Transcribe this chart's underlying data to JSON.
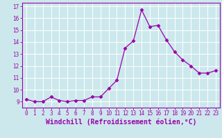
{
  "x": [
    0,
    1,
    2,
    3,
    4,
    5,
    6,
    7,
    8,
    9,
    10,
    11,
    12,
    13,
    14,
    15,
    16,
    17,
    18,
    19,
    20,
    21,
    22,
    23
  ],
  "y": [
    9.2,
    9.0,
    9.0,
    9.4,
    9.1,
    9.0,
    9.1,
    9.1,
    9.4,
    9.4,
    10.1,
    10.8,
    13.5,
    14.1,
    16.7,
    15.3,
    15.4,
    14.2,
    13.2,
    12.5,
    12.0,
    11.4,
    11.4,
    11.6
  ],
  "line_color": "#9900aa",
  "marker": "D",
  "marker_size": 2.5,
  "background_color": "#cce8ec",
  "grid_color": "#ffffff",
  "xlabel": "Windchill (Refroidissement éolien,°C)",
  "ylabel": "",
  "ylim": [
    8.5,
    17.3
  ],
  "xlim": [
    -0.5,
    23.5
  ],
  "yticks": [
    9,
    10,
    11,
    12,
    13,
    14,
    15,
    16,
    17
  ],
  "xticks": [
    0,
    1,
    2,
    3,
    4,
    5,
    6,
    7,
    8,
    9,
    10,
    11,
    12,
    13,
    14,
    15,
    16,
    17,
    18,
    19,
    20,
    21,
    22,
    23
  ],
  "tick_fontsize": 5.5,
  "xlabel_fontsize": 7.0,
  "spine_color": "#9900aa",
  "linewidth": 0.9
}
